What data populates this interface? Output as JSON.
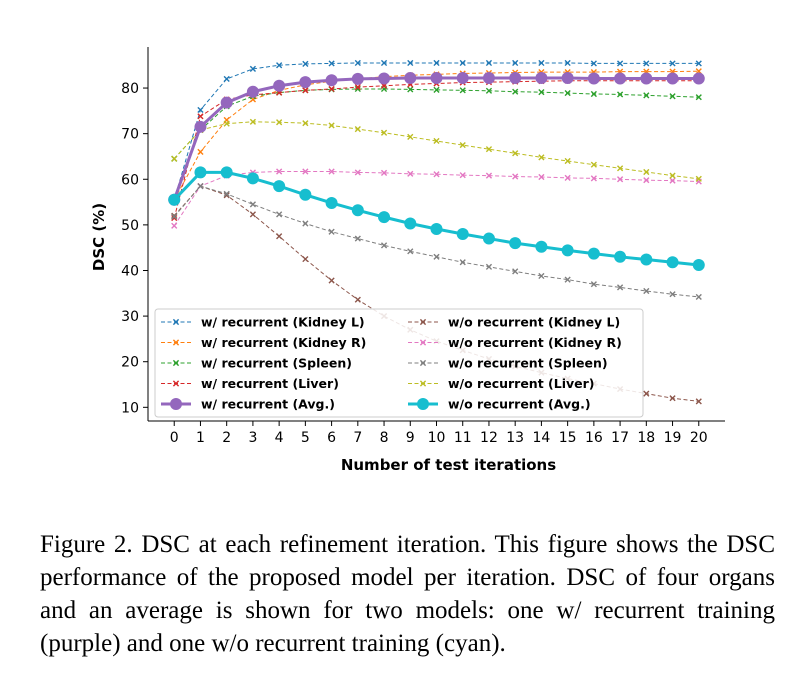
{
  "chart_data": {
    "type": "line",
    "xlabel": "Number of test iterations",
    "ylabel": "DSC (%)",
    "xlim": [
      -1,
      21
    ],
    "ylim": [
      7,
      89
    ],
    "x": [
      0,
      1,
      2,
      3,
      4,
      5,
      6,
      7,
      8,
      9,
      10,
      11,
      12,
      13,
      14,
      15,
      16,
      17,
      18,
      19,
      20
    ],
    "xticks": [
      0,
      1,
      2,
      3,
      4,
      5,
      6,
      7,
      8,
      9,
      10,
      11,
      12,
      13,
      14,
      15,
      16,
      17,
      18,
      19,
      20
    ],
    "yticks": [
      10,
      20,
      30,
      40,
      50,
      60,
      70,
      80
    ],
    "legend_position": "lower-left",
    "grid": false,
    "series": [
      {
        "name": "w/ recurrent (Kidney L)",
        "color": "#1f77b4",
        "marker": "x",
        "style": "dashed",
        "values": [
          55.5,
          75.2,
          82.0,
          84.2,
          85.0,
          85.3,
          85.4,
          85.5,
          85.5,
          85.5,
          85.5,
          85.5,
          85.5,
          85.5,
          85.5,
          85.5,
          85.4,
          85.4,
          85.4,
          85.4,
          85.4
        ]
      },
      {
        "name": "w/ recurrent (Kidney R)",
        "color": "#ff7f0e",
        "marker": "x",
        "style": "dashed",
        "values": [
          55.5,
          66.0,
          73.0,
          77.5,
          79.5,
          80.7,
          81.5,
          82.0,
          82.5,
          82.8,
          83.0,
          83.2,
          83.3,
          83.4,
          83.5,
          83.5,
          83.5,
          83.6,
          83.6,
          83.6,
          83.7
        ]
      },
      {
        "name": "w/ recurrent (Spleen)",
        "color": "#2ca02c",
        "marker": "x",
        "style": "dashed",
        "values": [
          64.5,
          70.8,
          76.0,
          78.2,
          79.0,
          79.5,
          79.7,
          79.8,
          79.8,
          79.7,
          79.6,
          79.5,
          79.4,
          79.2,
          79.1,
          78.9,
          78.7,
          78.6,
          78.4,
          78.2,
          78.0
        ]
      },
      {
        "name": "w/ recurrent (Liver)",
        "color": "#d62728",
        "marker": "x",
        "style": "dashed",
        "values": [
          51.5,
          73.8,
          77.5,
          78.5,
          79.0,
          79.5,
          79.8,
          80.2,
          80.5,
          80.8,
          81.0,
          81.2,
          81.3,
          81.4,
          81.5,
          81.6,
          81.6,
          81.6,
          81.6,
          81.6,
          81.6
        ]
      },
      {
        "name": "w/ recurrent (Avg.)",
        "color": "#9467bd",
        "marker": "o",
        "style": "solid",
        "bold": true,
        "values": [
          55.5,
          71.5,
          76.8,
          79.2,
          80.5,
          81.3,
          81.7,
          82.0,
          82.1,
          82.2,
          82.2,
          82.2,
          82.2,
          82.2,
          82.2,
          82.2,
          82.1,
          82.1,
          82.1,
          82.1,
          82.1
        ]
      },
      {
        "name": "w/o recurrent (Kidney L)",
        "color": "#8c564b",
        "marker": "x",
        "style": "dashed",
        "values": [
          52.0,
          58.5,
          56.5,
          52.3,
          47.5,
          42.5,
          37.8,
          33.6,
          30.0,
          27.0,
          24.5,
          22.5,
          20.6,
          19.0,
          17.6,
          16.3,
          15.2,
          14.0,
          13.0,
          12.0,
          11.3
        ]
      },
      {
        "name": "w/o recurrent (Kidney R)",
        "color": "#e377c2",
        "marker": "x",
        "style": "dashed",
        "values": [
          49.8,
          58.5,
          60.8,
          61.5,
          61.7,
          61.7,
          61.7,
          61.5,
          61.4,
          61.2,
          61.1,
          60.9,
          60.8,
          60.6,
          60.5,
          60.3,
          60.2,
          60.0,
          59.8,
          59.7,
          59.5
        ]
      },
      {
        "name": "w/o recurrent (Spleen)",
        "color": "#7f7f7f",
        "marker": "x",
        "style": "dashed",
        "values": [
          51.8,
          58.5,
          56.8,
          54.5,
          52.3,
          50.3,
          48.5,
          47.0,
          45.5,
          44.2,
          43.0,
          41.8,
          40.8,
          39.8,
          38.8,
          38.0,
          37.0,
          36.3,
          35.5,
          34.8,
          34.2
        ]
      },
      {
        "name": "w/o recurrent (Liver)",
        "color": "#bcbd22",
        "marker": "x",
        "style": "dashed",
        "values": [
          64.5,
          70.8,
          72.2,
          72.6,
          72.5,
          72.3,
          71.8,
          71.0,
          70.2,
          69.3,
          68.4,
          67.5,
          66.6,
          65.7,
          64.8,
          64.0,
          63.2,
          62.4,
          61.6,
          60.8,
          60.1
        ]
      },
      {
        "name": "w/o recurrent (Avg.)",
        "color": "#17becf",
        "marker": "o",
        "style": "solid",
        "bold": true,
        "values": [
          55.5,
          61.5,
          61.5,
          60.2,
          58.5,
          56.6,
          54.8,
          53.2,
          51.7,
          50.3,
          49.1,
          48.0,
          47.0,
          46.0,
          45.2,
          44.4,
          43.7,
          43.0,
          42.4,
          41.8,
          41.2
        ]
      }
    ]
  },
  "caption": {
    "text": "Figure 2. DSC at each refinement iteration. This figure shows the DSC performance of the proposed model per iteration. DSC of four organs and an average is shown for two models: one w/ recurrent training (purple) and one w/o recurrent training (cyan)."
  }
}
